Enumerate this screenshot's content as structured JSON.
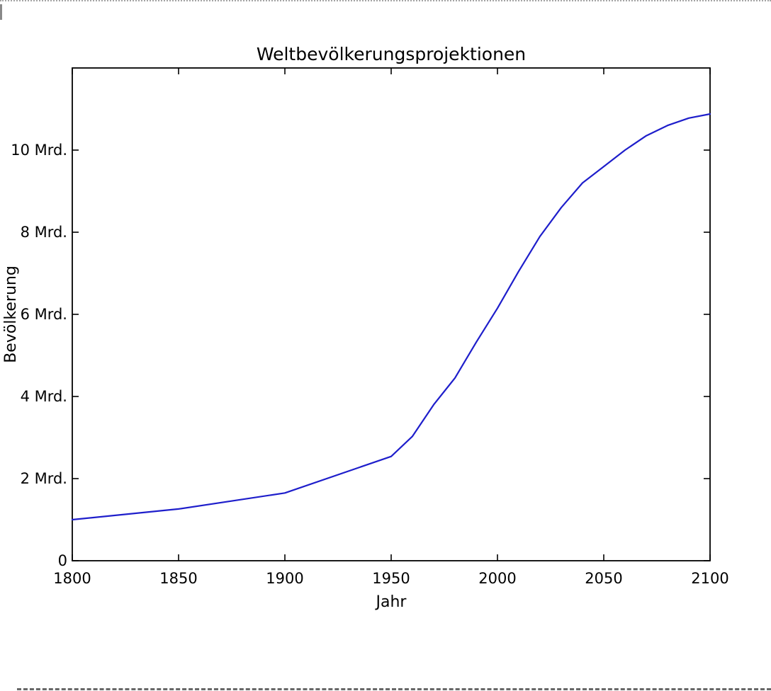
{
  "chart_data": {
    "type": "line",
    "title": "Weltbevölkerungsprojektionen",
    "xlabel": "Jahr",
    "ylabel": "Bevölkerung",
    "x": [
      1800,
      1850,
      1900,
      1950,
      1960,
      1970,
      1980,
      1990,
      2000,
      2010,
      2020,
      2030,
      2040,
      2050,
      2060,
      2070,
      2080,
      2090,
      2100
    ],
    "values": [
      1.0,
      1.26,
      1.65,
      2.54,
      3.03,
      3.8,
      4.45,
      5.32,
      6.15,
      7.05,
      7.9,
      8.6,
      9.2,
      9.6,
      10.0,
      10.35,
      10.6,
      10.78,
      10.88
    ],
    "unit": "Mrd.",
    "xlim": [
      1800,
      2100
    ],
    "ylim": [
      0,
      12
    ],
    "x_tick_values": [
      1800,
      1850,
      1900,
      1950,
      2000,
      2050,
      2100
    ],
    "x_tick_labels": [
      "1800",
      "1850",
      "1900",
      "1950",
      "2000",
      "2050",
      "2100"
    ],
    "y_tick_values": [
      0,
      2,
      4,
      6,
      8,
      10
    ],
    "y_tick_labels": [
      "0",
      "2 Mrd.",
      "4 Mrd.",
      "6 Mrd.",
      "8 Mrd.",
      "10 Mrd."
    ],
    "grid": false,
    "legend": "none",
    "line_color": "#1e1ecb",
    "axis_color": "#000000",
    "text_color": "#000000",
    "background": "#ffffff"
  }
}
